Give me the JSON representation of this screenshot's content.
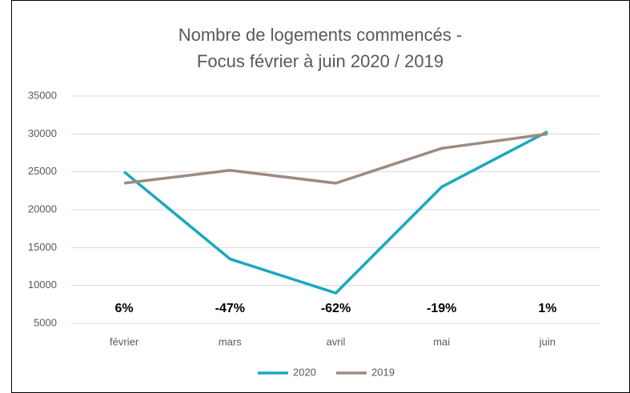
{
  "chart_data": {
    "type": "line",
    "title": "Nombre de logements commencés -",
    "subtitle": "Focus février à juin 2020 / 2019",
    "categories": [
      "février",
      "mars",
      "avril",
      "mai",
      "juin"
    ],
    "series": [
      {
        "name": "2020",
        "color": "#1aa8c0",
        "values": [
          25000,
          13500,
          9000,
          23000,
          30300
        ]
      },
      {
        "name": "2019",
        "color": "#9e8a80",
        "values": [
          23500,
          25200,
          23500,
          28100,
          30000
        ]
      }
    ],
    "annotations": [
      "6%",
      "-47%",
      "-62%",
      "-19%",
      "1%"
    ],
    "ylim": [
      5000,
      35000
    ],
    "yticks": [
      5000,
      10000,
      15000,
      20000,
      25000,
      30000,
      35000
    ],
    "grid": true,
    "legend": "bottom"
  }
}
